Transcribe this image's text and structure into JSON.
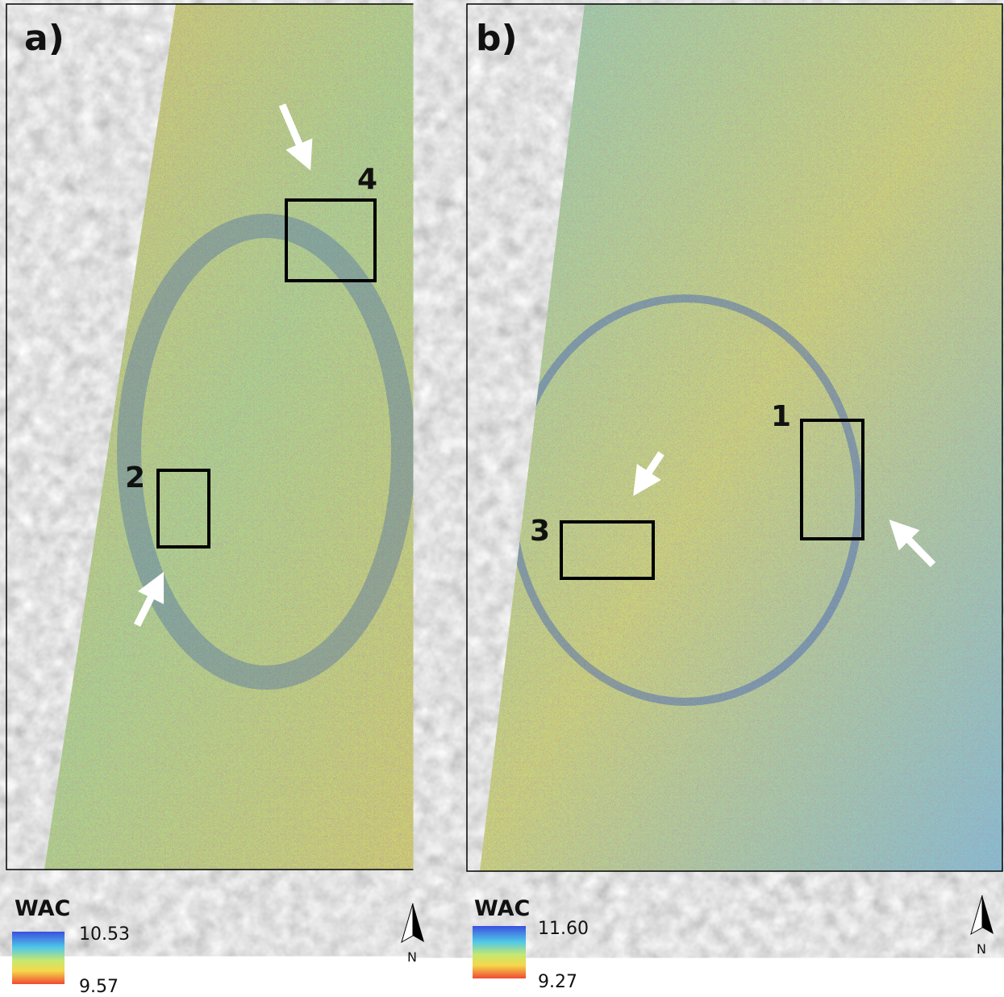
{
  "panels": [
    {
      "label": "a)",
      "boxes": [
        {
          "label": "4"
        },
        {
          "label": "2"
        }
      ],
      "legend": {
        "title": "WAC",
        "max": "10.53",
        "min": "9.57"
      },
      "north": "N"
    },
    {
      "label": "b)",
      "boxes": [
        {
          "label": "1"
        },
        {
          "label": "3"
        }
      ],
      "legend": {
        "title": "WAC",
        "max": "11.60",
        "min": "9.27"
      },
      "north": "N"
    }
  ]
}
